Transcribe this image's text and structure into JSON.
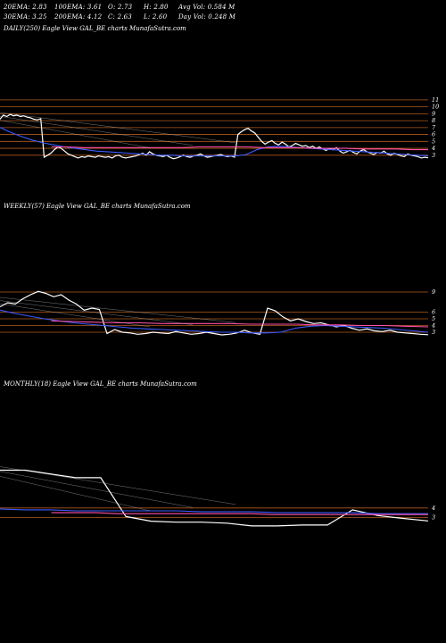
{
  "header": {
    "row1": [
      {
        "label": "20EMA:",
        "value": "2.83"
      },
      {
        "label": "100EMA:",
        "value": "3.61"
      },
      {
        "label": "O:",
        "value": "2.73"
      },
      {
        "label": "H:",
        "value": "2.80"
      },
      {
        "label": "Avg Vol:",
        "value": "0.584  M"
      }
    ],
    "row2": [
      {
        "label": "30EMA:",
        "value": "3.25"
      },
      {
        "label": "200EMA:",
        "value": "4.12"
      },
      {
        "label": "C:",
        "value": "2.63"
      },
      {
        "label": "L:",
        "value": "2.60"
      },
      {
        "label": "Day Vol:",
        "value": "0.248  M"
      }
    ]
  },
  "panels": {
    "daily": {
      "label": "DAILY(250) Eagle  View  GAL_BE charts MunafaSutra.com"
    },
    "weekly": {
      "label": "WEEKLY(57) Eagle  View  GAL_BE charts MunafaSutra.com"
    },
    "monthly": {
      "label": "MONTHLY(18) Eagle  View  GAL_BE charts MunafaSutra.com"
    }
  },
  "colors": {
    "price": "#ffffff",
    "ema_short": "#3a5bff",
    "ema_long": "#ff4fa8",
    "grid": "#b05a1e",
    "ema_mid": "#c8c8c8"
  },
  "chart_data": [
    {
      "type": "line",
      "name": "daily",
      "ylim": [
        2.2,
        11.5
      ],
      "y_ticks": [
        11,
        10,
        9,
        8,
        7,
        6,
        5,
        4,
        3
      ],
      "h_levels": [
        11,
        10,
        9,
        8,
        7,
        6,
        5,
        4,
        3
      ],
      "series": [
        {
          "name": "price",
          "color": "#ffffff",
          "values": [
            8.2,
            8.8,
            8.6,
            8.9,
            8.7,
            8.8,
            8.6,
            8.7,
            8.5,
            8.4,
            8.2,
            8.1,
            8.3,
            2.7,
            3.0,
            3.3,
            3.8,
            4.2,
            4.0,
            3.6,
            3.2,
            3.0,
            2.8,
            2.6,
            2.8,
            2.7,
            2.9,
            2.8,
            2.7,
            2.9,
            2.8,
            2.7,
            2.8,
            2.6,
            2.9,
            3.0,
            2.7,
            2.6,
            2.7,
            2.8,
            2.9,
            3.1,
            3.3,
            3.0,
            3.5,
            3.2,
            3.0,
            2.9,
            2.8,
            3.0,
            2.7,
            2.5,
            2.6,
            2.8,
            3.0,
            2.8,
            2.7,
            2.9,
            3.0,
            3.2,
            2.9,
            2.7,
            2.8,
            2.9,
            3.0,
            3.1,
            2.9,
            2.8,
            2.9,
            2.7,
            6.0,
            6.4,
            6.7,
            6.9,
            6.5,
            6.2,
            5.6,
            5.0,
            4.6,
            4.9,
            5.1,
            4.7,
            4.5,
            4.9,
            4.6,
            4.2,
            4.4,
            4.7,
            4.5,
            4.3,
            4.4,
            4.1,
            4.3,
            4.0,
            4.2,
            3.9,
            3.7,
            4.0,
            3.8,
            4.1,
            3.6,
            3.3,
            3.5,
            3.7,
            3.4,
            3.2,
            3.6,
            3.8,
            3.5,
            3.3,
            3.1,
            3.4,
            3.3,
            3.6,
            3.2,
            3.0,
            3.3,
            3.1,
            2.9,
            2.8,
            3.2,
            3.0,
            2.9,
            2.8,
            2.6,
            2.7,
            2.63
          ]
        },
        {
          "name": "ema_fast",
          "color": "#3a5bff",
          "values": [
            7.0,
            6.3,
            5.7,
            5.2,
            4.8,
            4.5,
            4.2,
            4.0,
            3.8,
            3.6,
            3.5,
            3.4,
            3.3,
            3.2,
            3.1,
            3.0,
            3.0,
            2.9,
            2.9,
            2.9,
            2.9,
            2.9,
            2.9,
            3.1,
            3.8,
            4.2,
            4.3,
            4.2,
            4.1,
            4.0,
            3.9,
            3.8,
            3.7,
            3.6,
            3.5,
            3.4,
            3.3,
            3.2,
            3.1,
            3.0,
            2.9
          ]
        },
        {
          "name": "ema_slow",
          "color": "#ff4fa8",
          "values": [
            4.2,
            4.2,
            4.1,
            4.1,
            4.1,
            4.1,
            4.1,
            4.1,
            4.1,
            4.2,
            4.2,
            4.2,
            4.2,
            4.1,
            4.1,
            4.1,
            4.0,
            4.0,
            4.0,
            3.9,
            3.9,
            3.9,
            3.8,
            3.8
          ]
        }
      ]
    },
    {
      "type": "line",
      "name": "weekly",
      "ylim": [
        2.2,
        10.2
      ],
      "y_ticks": [
        9,
        6,
        5,
        4,
        3
      ],
      "h_levels": [
        9,
        6,
        5,
        4,
        3
      ],
      "series": [
        {
          "name": "price",
          "color": "#ffffff",
          "values": [
            6.8,
            7.4,
            7.2,
            8.0,
            8.6,
            9.1,
            8.8,
            8.3,
            8.6,
            7.8,
            7.2,
            6.3,
            6.6,
            6.4,
            2.8,
            3.4,
            3.0,
            2.9,
            2.7,
            2.8,
            3.0,
            2.9,
            2.8,
            3.1,
            2.9,
            2.7,
            2.8,
            3.0,
            2.8,
            2.6,
            2.7,
            2.9,
            3.3,
            2.9,
            2.7,
            6.6,
            6.2,
            5.3,
            4.7,
            5.0,
            4.6,
            4.3,
            4.4,
            4.1,
            3.8,
            4.0,
            3.6,
            3.3,
            3.5,
            3.2,
            3.1,
            3.3,
            3.0,
            2.9,
            2.8,
            2.7,
            2.63
          ]
        },
        {
          "name": "ema_fast",
          "color": "#3a5bff",
          "values": [
            6.3,
            5.8,
            5.4,
            5.0,
            4.7,
            4.4,
            4.2,
            4.0,
            3.8,
            3.6,
            3.5,
            3.4,
            3.3,
            3.2,
            3.1,
            3.0,
            3.0,
            2.9,
            2.9,
            3.0,
            3.6,
            3.9,
            4.0,
            3.9,
            3.8,
            3.7,
            3.6,
            3.4,
            3.2,
            3.0
          ]
        },
        {
          "name": "ema_slow",
          "color": "#ff4fa8",
          "values": [
            4.7,
            4.6,
            4.5,
            4.4,
            4.4,
            4.3,
            4.3,
            4.3,
            4.3,
            4.2,
            4.2,
            4.2,
            4.1,
            4.1,
            4.0,
            4.0,
            3.9,
            3.8
          ]
        }
      ]
    },
    {
      "type": "line",
      "name": "monthly",
      "ylim": [
        2.0,
        10.5
      ],
      "y_ticks": [
        4,
        3
      ],
      "h_levels": [
        4,
        3
      ],
      "series": [
        {
          "name": "price",
          "color": "#ffffff",
          "values": [
            8.0,
            8.0,
            7.6,
            7.2,
            7.2,
            3.1,
            2.6,
            2.5,
            2.5,
            2.4,
            2.1,
            2.1,
            2.2,
            2.2,
            3.8,
            3.2,
            2.9,
            2.63
          ]
        },
        {
          "name": "ema_fast",
          "color": "#3a5bff",
          "values": [
            3.9,
            3.8,
            3.8,
            3.7,
            3.7,
            3.7,
            3.7,
            3.7,
            3.6,
            3.6,
            3.6,
            3.5,
            3.5,
            3.5,
            3.5,
            3.4,
            3.4,
            3.4
          ]
        },
        {
          "name": "ema_slow",
          "color": "#ff4fa8",
          "values": [
            3.5,
            3.5,
            3.5,
            3.4,
            3.4,
            3.4,
            3.4,
            3.4,
            3.4,
            3.4,
            3.3,
            3.3,
            3.3,
            3.3,
            3.3,
            3.3,
            3.3,
            3.3
          ]
        }
      ]
    }
  ]
}
